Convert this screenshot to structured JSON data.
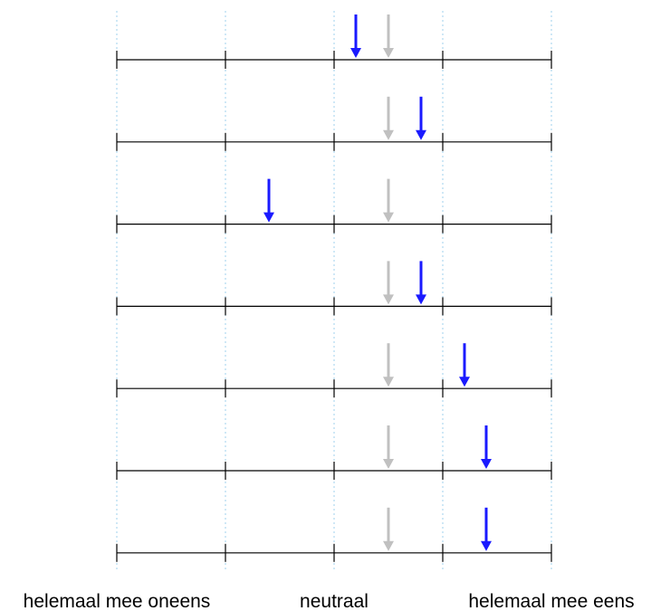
{
  "chart_data": {
    "type": "scatter",
    "subtype": "likert-arrow-strips",
    "scale_min": 1,
    "scale_max": 5,
    "grid": "vertical-dotted",
    "xtick_labels": [
      {
        "value": 1,
        "label": "helemaal mee oneens"
      },
      {
        "value": 3,
        "label": "neutraal"
      },
      {
        "value": 5,
        "label": "helemaal mee eens"
      }
    ],
    "reference_value": 3.5,
    "rows": [
      {
        "value": 3.2,
        "reference": 3.5
      },
      {
        "value": 3.8,
        "reference": 3.5
      },
      {
        "value": 2.4,
        "reference": 3.5
      },
      {
        "value": 3.8,
        "reference": 3.5
      },
      {
        "value": 4.2,
        "reference": 3.5
      },
      {
        "value": 4.4,
        "reference": 3.5
      },
      {
        "value": 4.4,
        "reference": 3.5
      }
    ],
    "colors": {
      "value_arrow": "#1a1aff",
      "reference_arrow": "#c0c0c0",
      "axis_line": "#000000",
      "grid": "#9fd0ee"
    }
  }
}
